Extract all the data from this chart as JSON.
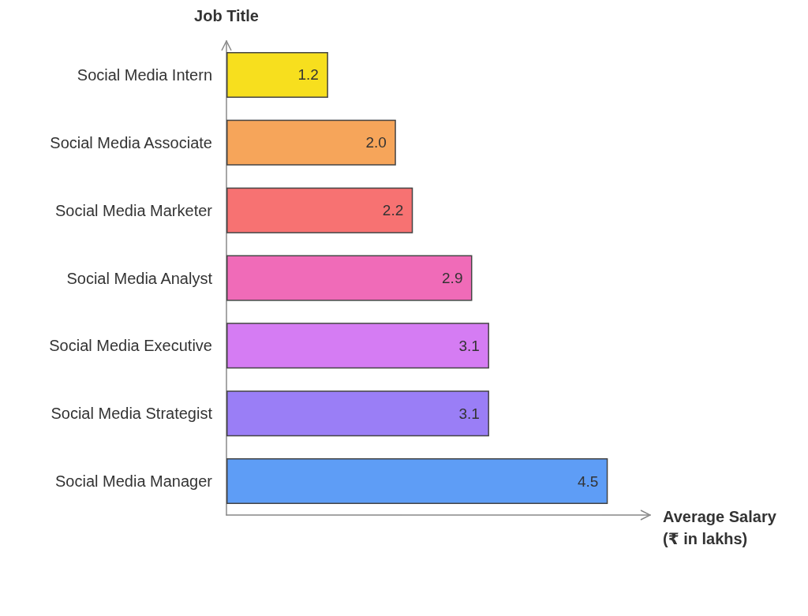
{
  "chart_data": {
    "type": "bar",
    "orientation": "horizontal",
    "ylabel": "Job Title",
    "xlabel": "Average Salary\n(₹ in lakhs)",
    "categories": [
      "Social Media Intern",
      "Social Media Associate",
      "Social Media Marketer",
      "Social Media Analyst",
      "Social Media Executive",
      "Social Media Strategist",
      "Social Media Manager"
    ],
    "values": [
      1.2,
      2.0,
      2.2,
      2.9,
      3.1,
      3.1,
      4.5
    ],
    "value_labels": [
      "1.2",
      "2.0",
      "2.2",
      "2.9",
      "3.1",
      "3.1",
      "4.5"
    ],
    "colors": [
      "#f7df1e",
      "#f6a55a",
      "#f77272",
      "#f06bb8",
      "#d57cf3",
      "#9a7ef6",
      "#5e9df6"
    ],
    "tick_labels": "y",
    "grid": false
  }
}
